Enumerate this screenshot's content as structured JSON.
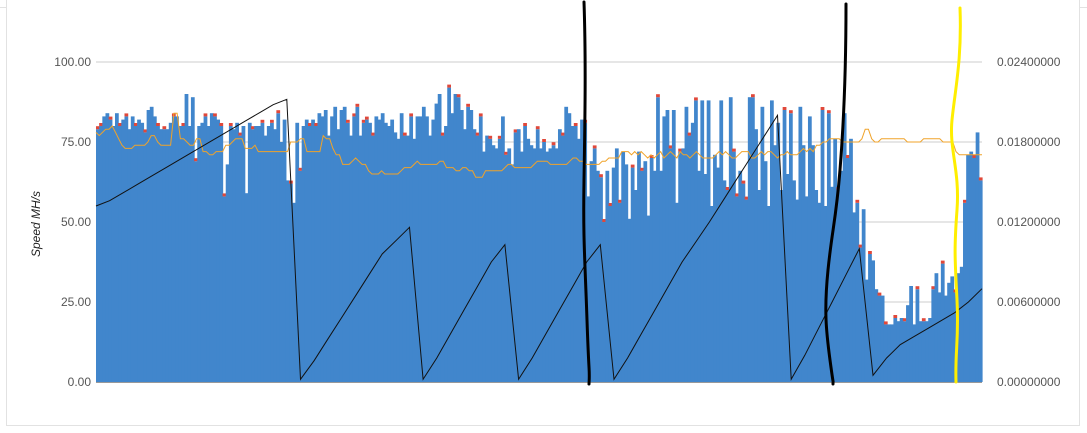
{
  "chart_data": {
    "type": "bar",
    "ylabel": "Speed MH/s",
    "ylim": [
      0,
      100
    ],
    "y2lim": [
      0,
      0.024
    ],
    "y_ticks": [
      "0.00",
      "25.00",
      "50.00",
      "75.00",
      "100.00"
    ],
    "y2_ticks": [
      "0.00000000",
      "0.00600000",
      "0.01200000",
      "0.01800000",
      "0.02400000"
    ],
    "grid": true,
    "legend": "none",
    "colors": {
      "bar": "#4186cc",
      "bar_top": "#e0483a",
      "average_line": "#f0a32a",
      "balance_line": "#111111",
      "marker_black": "#000000",
      "marker_yellow": "#ffee00"
    },
    "bar_values": [
      79,
      80,
      83,
      84,
      82,
      80,
      84,
      80,
      82,
      83,
      79,
      83,
      80,
      82,
      81,
      78,
      85,
      86,
      83,
      80,
      79,
      79,
      79,
      81,
      83,
      83,
      80,
      80,
      90,
      80,
      89,
      69,
      80,
      81,
      83,
      80,
      84,
      83,
      82,
      80,
      58,
      68,
      80,
      79,
      81,
      77,
      80,
      59,
      81,
      79,
      80,
      80,
      81,
      77,
      80,
      81,
      79,
      84,
      75,
      82,
      63,
      62,
      56,
      81,
      66,
      80,
      82,
      80,
      82,
      80,
      84,
      83,
      85,
      77,
      83,
      86,
      79,
      85,
      86,
      81,
      77,
      83,
      86,
      77,
      81,
      82,
      81,
      77,
      83,
      82,
      84,
      81,
      80,
      82,
      78,
      76,
      84,
      77,
      77,
      83,
      76,
      83,
      83,
      86,
      83,
      77,
      82,
      87,
      90,
      77,
      80,
      92,
      84,
      90,
      89,
      85,
      79,
      86,
      85,
      79,
      77,
      83,
      72,
      77,
      76,
      74,
      73,
      76,
      83,
      71,
      73,
      68,
      78,
      79,
      72,
      80,
      76,
      74,
      73,
      79,
      73,
      75,
      72,
      73,
      74,
      73,
      79,
      77,
      86,
      84,
      80,
      80,
      76,
      82,
      81,
      58,
      69,
      73,
      66,
      64,
      50,
      66,
      55,
      67,
      73,
      56,
      72,
      68,
      51,
      67,
      60,
      72,
      66,
      69,
      52,
      70,
      66,
      89,
      66,
      83,
      85,
      73,
      85,
      56,
      72,
      73,
      86,
      77,
      81,
      88,
      66,
      88,
      65,
      88,
      55,
      71,
      67,
      88,
      63,
      60,
      89,
      72,
      58,
      66,
      62,
      57,
      89,
      89,
      79,
      60,
      86,
      69,
      55,
      88,
      74,
      81,
      60,
      85,
      65,
      84,
      63,
      57,
      86,
      74,
      58,
      83,
      74,
      60,
      56,
      85,
      55,
      84,
      61,
      76,
      60,
      66,
      84,
      70,
      76,
      53,
      56,
      42,
      54,
      32,
      40,
      38,
      29,
      27,
      27,
      18,
      18,
      18,
      20,
      19,
      20,
      19,
      24,
      30,
      18,
      29,
      19,
      19,
      19,
      20,
      29,
      34,
      28,
      37,
      27,
      31,
      33,
      28,
      34,
      36,
      56,
      71,
      72,
      70,
      78,
      63
    ],
    "red_tops": [
      1,
      1,
      1,
      0,
      1,
      1,
      0,
      1,
      0,
      1,
      0,
      0,
      1,
      0,
      0,
      1,
      0,
      1,
      0,
      1,
      0,
      1,
      0,
      0,
      1,
      0,
      0,
      1,
      0,
      1,
      0,
      1,
      0,
      0,
      1,
      0,
      0,
      1,
      0,
      1
    ],
    "average_values": [
      78,
      77,
      78,
      79,
      79,
      80,
      78,
      76,
      74,
      73,
      73,
      73,
      74,
      74,
      74,
      74,
      75,
      77,
      77,
      75,
      74,
      74,
      74,
      74,
      84,
      84,
      76,
      76,
      75,
      74,
      74,
      76,
      76,
      72,
      72,
      71,
      71,
      72,
      72,
      72,
      74,
      74,
      75,
      76,
      76,
      76,
      73,
      73,
      73,
      74,
      72,
      72,
      72,
      72,
      72,
      72,
      72,
      72,
      72,
      72,
      75,
      75,
      75,
      76,
      76,
      72,
      72,
      72,
      72,
      72,
      77,
      76,
      76,
      73,
      71,
      71,
      68,
      68,
      68,
      69,
      70,
      69,
      68,
      68,
      66,
      65,
      65,
      65,
      66,
      65,
      65,
      65,
      65,
      65,
      66,
      67,
      67,
      67,
      68,
      69,
      68,
      68,
      68,
      68,
      68,
      68,
      69,
      69,
      67,
      67,
      67,
      66,
      66,
      67,
      67,
      66,
      66,
      64,
      64,
      64,
      66,
      66,
      66,
      66,
      66,
      66,
      67,
      68,
      68,
      67,
      67,
      67,
      67,
      67,
      67,
      68,
      69,
      69,
      69,
      69,
      68,
      68,
      68,
      68,
      68,
      68,
      69,
      70,
      70,
      69,
      69,
      68,
      68,
      68,
      68,
      68,
      69,
      69,
      70,
      70,
      70,
      70,
      72,
      72,
      72,
      71,
      72,
      71,
      72,
      71,
      70,
      71,
      70,
      71,
      72,
      70,
      71,
      72,
      71,
      70,
      72,
      71,
      71,
      70,
      71,
      72,
      71,
      70,
      70,
      70,
      70,
      71,
      72,
      71,
      72,
      71,
      70,
      70,
      71,
      72,
      72,
      72,
      70,
      70,
      71,
      72,
      71,
      72,
      72,
      71,
      70,
      71,
      71,
      72,
      71,
      71,
      71,
      72,
      73,
      72,
      73,
      72,
      74,
      74,
      75,
      75,
      76,
      76,
      76,
      76,
      75,
      75,
      75,
      75,
      75,
      75,
      76,
      79,
      79,
      76,
      75,
      75,
      76,
      76,
      76,
      76,
      76,
      76,
      76,
      76,
      75,
      75,
      75,
      75,
      75,
      76,
      76,
      76,
      76,
      76,
      76,
      75,
      75,
      75,
      75,
      72,
      71,
      71,
      71,
      71,
      71,
      71,
      71,
      71
    ],
    "balance_values": [
      0.0132,
      0.0136,
      0.0142,
      0.0148,
      0.0154,
      0.016,
      0.0166,
      0.0172,
      0.0178,
      0.0184,
      0.019,
      0.0196,
      0.0202,
      0.0208,
      0.0212,
      0.0002,
      0.0016,
      0.0032,
      0.0048,
      0.0064,
      0.008,
      0.0096,
      0.0106,
      0.0116,
      0.0002,
      0.0018,
      0.0036,
      0.0054,
      0.0072,
      0.009,
      0.0103,
      0.0002,
      0.0018,
      0.0036,
      0.0054,
      0.0072,
      0.009,
      0.0103,
      0.0002,
      0.0018,
      0.0036,
      0.0054,
      0.0072,
      0.009,
      0.0105,
      0.012,
      0.0136,
      0.0152,
      0.0168,
      0.0184,
      0.02,
      0.0002,
      0.002,
      0.004,
      0.006,
      0.008,
      0.01,
      0.0005,
      0.0018,
      0.0028,
      0.0034,
      0.004,
      0.0046,
      0.0052,
      0.006,
      0.007
    ]
  }
}
